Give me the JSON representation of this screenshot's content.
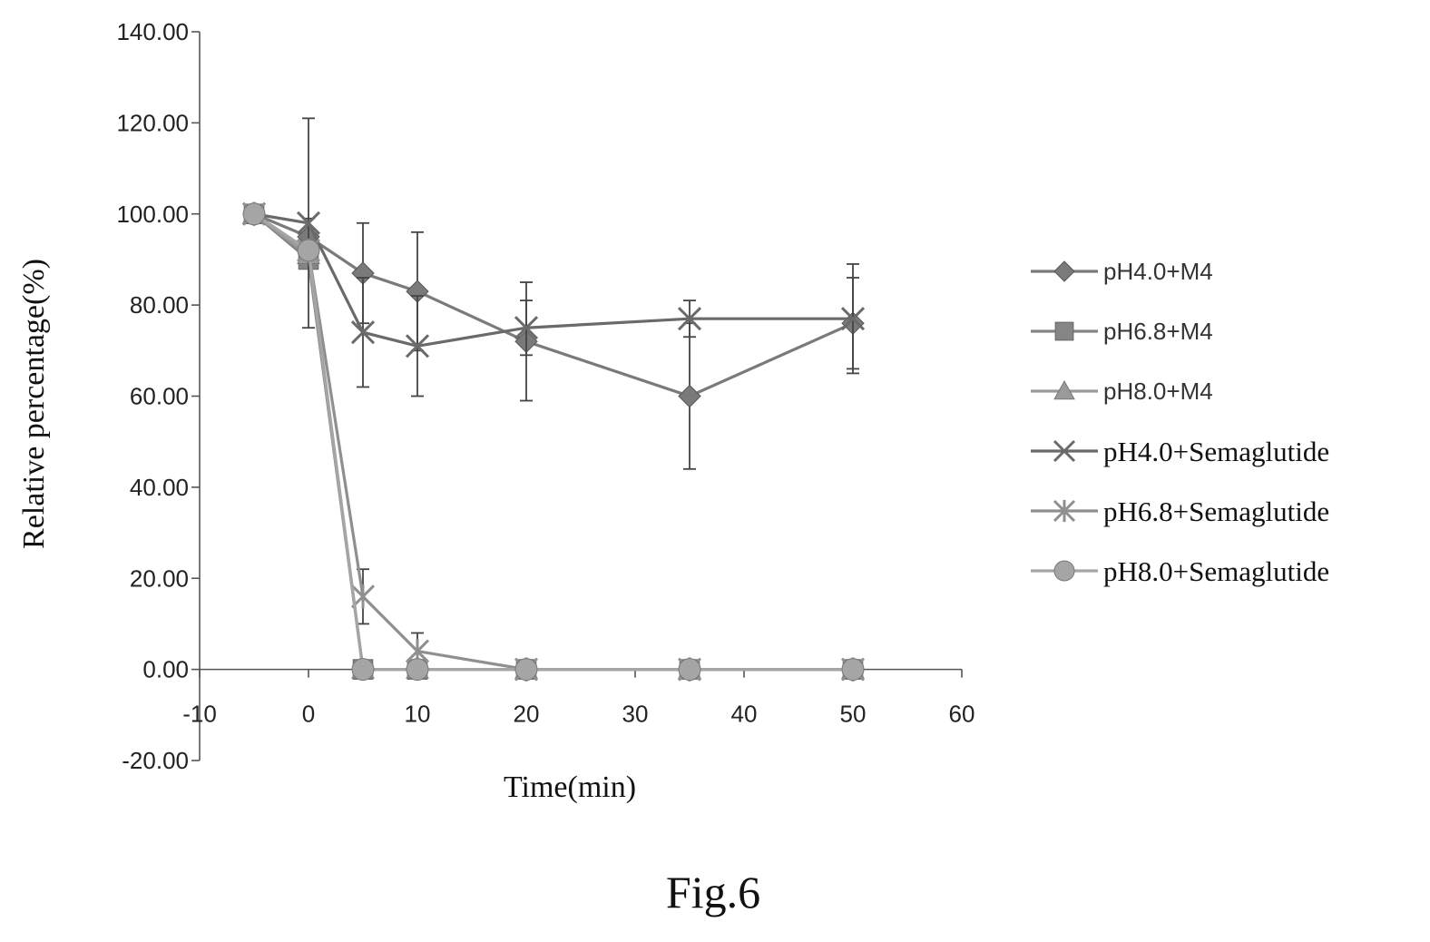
{
  "figure_caption": "Fig.6",
  "chart_data": {
    "type": "line",
    "title": "",
    "xlabel": "Time(min)",
    "ylabel": "Relative percentage(%)",
    "xlim": [
      -10,
      60
    ],
    "ylim": [
      -20,
      140
    ],
    "x_ticks": [
      "-10",
      "0",
      "10",
      "20",
      "30",
      "40",
      "50",
      "60"
    ],
    "y_ticks": [
      "-20.00",
      "0.00",
      "20.00",
      "40.00",
      "60.00",
      "80.00",
      "100.00",
      "120.00",
      "140.00"
    ],
    "grid": false,
    "legend_position": "right",
    "series": [
      {
        "name": "pH4.0+M4",
        "marker": "diamond",
        "color": "#7a7a7a",
        "x": [
          -5,
          0,
          5,
          10,
          20,
          35,
          50
        ],
        "y": [
          100,
          95,
          87,
          83,
          72,
          60,
          76
        ],
        "err": [
          0,
          4,
          11,
          13,
          13,
          16,
          10
        ]
      },
      {
        "name": "pH6.8+M4",
        "marker": "square",
        "color": "#858585",
        "x": [
          -5,
          0,
          5,
          10,
          20,
          35,
          50
        ],
        "y": [
          100,
          90,
          0,
          0,
          0,
          0,
          0
        ],
        "err": [
          0,
          0,
          0,
          0,
          0,
          0,
          0
        ]
      },
      {
        "name": "pH8.0+M4",
        "marker": "triangle",
        "color": "#9a9a9a",
        "x": [
          -5,
          0,
          5,
          10,
          20,
          35,
          50
        ],
        "y": [
          100,
          91,
          0,
          0,
          0,
          0,
          0
        ],
        "err": [
          0,
          0,
          0,
          0,
          0,
          0,
          0
        ]
      },
      {
        "name": "pH4.0+Semaglutide",
        "marker": "x",
        "color": "#6a6a6a",
        "x": [
          -5,
          0,
          5,
          10,
          20,
          35,
          50
        ],
        "y": [
          100,
          98,
          74,
          71,
          75,
          77,
          77
        ],
        "err": [
          0,
          23,
          12,
          11,
          6,
          4,
          12
        ]
      },
      {
        "name": "pH6.8+Semaglutide",
        "marker": "star",
        "color": "#8f8f8f",
        "x": [
          -5,
          0,
          5,
          10,
          20,
          35,
          50
        ],
        "y": [
          100,
          92,
          16,
          4,
          0,
          0,
          0
        ],
        "err": [
          0,
          0,
          6,
          4,
          0,
          0,
          0
        ]
      },
      {
        "name": "pH8.0+Semaglutide",
        "marker": "circle",
        "color": "#a5a5a5",
        "x": [
          -5,
          0,
          5,
          10,
          20,
          35,
          50
        ],
        "y": [
          100,
          92,
          0,
          0,
          0,
          0,
          0
        ],
        "err": [
          0,
          0,
          0,
          0,
          0,
          0,
          0
        ]
      }
    ]
  }
}
